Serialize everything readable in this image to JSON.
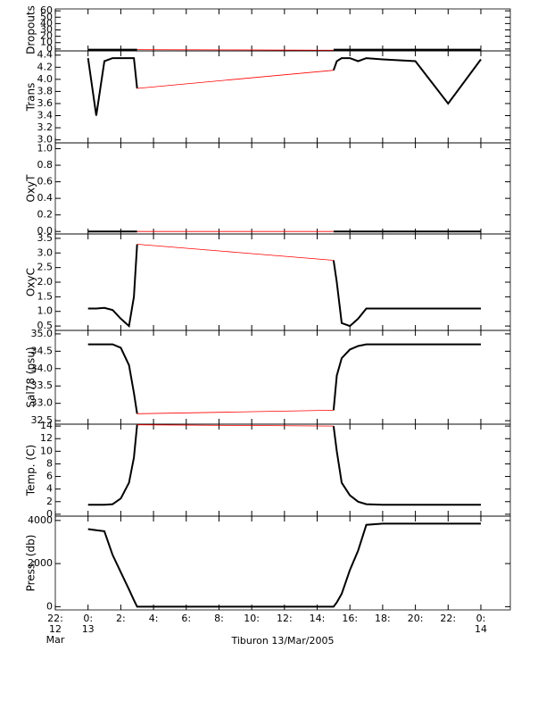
{
  "chart_data": [
    {
      "type": "line",
      "ylabel": "Dropouts",
      "ylim": [
        -3,
        63
      ],
      "yticks": [
        0,
        10,
        20,
        30,
        40,
        50,
        60
      ],
      "x": [
        0,
        0.5,
        1,
        1.5,
        2,
        2.5,
        2.8,
        3,
        9,
        15,
        15.2,
        15.5,
        16,
        16.5,
        17,
        18,
        20,
        22,
        24
      ],
      "series": [
        {
          "color": "#000000",
          "values": [
            -1,
            -1,
            -1,
            -1,
            -1,
            -1,
            -1,
            -1,
            null,
            -1,
            -1,
            -1,
            -1,
            -1,
            -1,
            -1,
            -1,
            -1,
            -1
          ]
        },
        {
          "color": "#ff0000",
          "values": [
            null,
            null,
            null,
            null,
            null,
            null,
            null,
            -1,
            -1.5,
            -2,
            null,
            null,
            null,
            null,
            null,
            null,
            null,
            null,
            null
          ]
        }
      ]
    },
    {
      "type": "line",
      "ylabel": "Trans",
      "ylim": [
        2.95,
        4.47
      ],
      "yticks": [
        {
          "value": 3.0,
          "label": "3.0"
        },
        3.2,
        3.4,
        3.6,
        3.8,
        {
          "value": 4.0,
          "label": "4.0"
        },
        4.2,
        4.4
      ],
      "x": [
        0,
        0.5,
        1,
        1.5,
        2,
        2.5,
        2.8,
        3,
        9,
        15,
        15.2,
        15.5,
        16,
        16.5,
        17,
        18,
        20,
        22,
        24
      ],
      "series": [
        {
          "color": "#000000",
          "values": [
            4.35,
            3.4,
            4.3,
            4.35,
            4.35,
            4.35,
            4.35,
            3.85,
            null,
            4.15,
            4.3,
            4.35,
            4.35,
            4.3,
            4.35,
            4.33,
            4.3,
            3.6,
            4.33
          ]
        },
        {
          "color": "#ff0000",
          "values": [
            null,
            null,
            null,
            null,
            null,
            null,
            null,
            3.85,
            4.0,
            4.15,
            null,
            null,
            null,
            null,
            null,
            null,
            null,
            null,
            null
          ]
        }
      ]
    },
    {
      "type": "line",
      "ylabel": "OxyT",
      "ylim": [
        -0.03,
        1.07
      ],
      "yticks": [
        {
          "value": 0,
          "label": "0.0"
        },
        0.2,
        0.4,
        0.6,
        0.8,
        {
          "value": 1,
          "label": "1.0"
        }
      ],
      "x": [
        0,
        0.5,
        1,
        1.5,
        2,
        2.5,
        2.8,
        3,
        9,
        15,
        15.2,
        15.5,
        16,
        16.5,
        17,
        18,
        20,
        22,
        24
      ],
      "series": [
        {
          "color": "#000000",
          "values": [
            0,
            0,
            0,
            0,
            0,
            0,
            0,
            0,
            null,
            0,
            0,
            0,
            0,
            0,
            0,
            0,
            0,
            0,
            0
          ]
        },
        {
          "color": "#ff0000",
          "values": [
            null,
            null,
            null,
            null,
            null,
            null,
            null,
            0,
            0,
            0,
            null,
            null,
            null,
            null,
            null,
            null,
            null,
            null,
            null
          ]
        }
      ]
    },
    {
      "type": "line",
      "ylabel": "OxyC",
      "ylim": [
        0.35,
        3.65
      ],
      "yticks": [
        0.5,
        {
          "value": 1,
          "label": "1.0"
        },
        1.5,
        {
          "value": 2,
          "label": "2.0"
        },
        2.5,
        {
          "value": 3,
          "label": "3.0"
        },
        3.5
      ],
      "x": [
        0,
        0.5,
        1,
        1.5,
        2,
        2.5,
        2.8,
        3,
        9,
        15,
        15.2,
        15.5,
        16,
        16.5,
        17,
        18,
        20,
        22,
        24
      ],
      "series": [
        {
          "color": "#000000",
          "values": [
            1.1,
            1.1,
            1.12,
            1.05,
            0.75,
            0.5,
            1.5,
            3.3,
            null,
            2.75,
            2.0,
            0.6,
            0.5,
            0.75,
            1.1,
            1.1,
            1.1,
            1.1,
            1.1
          ]
        },
        {
          "color": "#ff0000",
          "values": [
            null,
            null,
            null,
            null,
            null,
            null,
            null,
            3.3,
            3.025,
            2.75,
            null,
            null,
            null,
            null,
            null,
            null,
            null,
            null,
            null
          ]
        }
      ]
    },
    {
      "type": "line",
      "ylabel": "Sal78 (psu)",
      "ylim": [
        32.4,
        35.1
      ],
      "yticks": [
        32.5,
        {
          "value": 33,
          "label": "33.0"
        },
        33.5,
        {
          "value": 34,
          "label": "34.0"
        },
        34.5,
        {
          "value": 35,
          "label": "35.0"
        }
      ],
      "x": [
        0,
        0.5,
        1,
        1.5,
        2,
        2.5,
        2.8,
        3,
        9,
        15,
        15.2,
        15.5,
        16,
        16.5,
        17,
        18,
        20,
        22,
        24
      ],
      "series": [
        {
          "color": "#000000",
          "values": [
            34.7,
            34.7,
            34.7,
            34.7,
            34.6,
            34.1,
            33.3,
            32.7,
            null,
            32.8,
            33.8,
            34.3,
            34.55,
            34.65,
            34.7,
            34.7,
            34.7,
            34.7,
            34.7
          ]
        },
        {
          "color": "#ff0000",
          "values": [
            null,
            null,
            null,
            null,
            null,
            null,
            null,
            32.7,
            32.75,
            32.8,
            null,
            null,
            null,
            null,
            null,
            null,
            null,
            null,
            null
          ]
        }
      ]
    },
    {
      "type": "line",
      "ylabel": "Temp. (C)",
      "ylim": [
        -0.3,
        14.3
      ],
      "yticks": [
        0,
        2,
        4,
        6,
        8,
        10,
        12,
        14
      ],
      "x": [
        0,
        0.5,
        1,
        1.5,
        2,
        2.5,
        2.8,
        3,
        9,
        15,
        15.2,
        15.5,
        16,
        16.5,
        17,
        18,
        20,
        22,
        24
      ],
      "series": [
        {
          "color": "#000000",
          "values": [
            1.5,
            1.5,
            1.5,
            1.6,
            2.5,
            5,
            9,
            14.2,
            null,
            14.0,
            10,
            5,
            3,
            2,
            1.6,
            1.5,
            1.5,
            1.5,
            1.5
          ]
        },
        {
          "color": "#ff0000",
          "values": [
            null,
            null,
            null,
            null,
            null,
            null,
            null,
            14.2,
            14.1,
            14.0,
            null,
            null,
            null,
            null,
            null,
            null,
            null,
            null,
            null
          ]
        }
      ]
    },
    {
      "type": "line",
      "ylabel": "Press. (db)",
      "ylim": [
        -150,
        4200
      ],
      "yticks": [
        0,
        2000,
        4000
      ],
      "x": [
        0,
        0.5,
        1,
        1.5,
        2,
        2.5,
        2.8,
        3,
        9,
        15,
        15.2,
        15.5,
        16,
        16.5,
        17,
        18,
        20,
        22,
        24
      ],
      "series": [
        {
          "color": "#000000",
          "values": [
            3600,
            3550,
            3500,
            2400,
            1600,
            800,
            300,
            0,
            0,
            0,
            200,
            600,
            1700,
            2600,
            3800,
            3850,
            3850,
            3850,
            3850
          ]
        }
      ],
      "xlim": [
        -2,
        25.8
      ],
      "xticks": [
        {
          "value": -2,
          "label": "22:\n12\nMar"
        },
        {
          "value": 0,
          "label": "0:\n13"
        },
        {
          "value": 2,
          "label": "2:"
        },
        {
          "value": 4,
          "label": "4:"
        },
        {
          "value": 6,
          "label": "6:"
        },
        {
          "value": 8,
          "label": "8:"
        },
        {
          "value": 10,
          "label": "10:"
        },
        {
          "value": 12,
          "label": "12:"
        },
        {
          "value": 14,
          "label": "14:"
        },
        {
          "value": 16,
          "label": "16:"
        },
        {
          "value": 18,
          "label": "18:"
        },
        {
          "value": 20,
          "label": "20:"
        },
        {
          "value": 22,
          "label": "22:"
        },
        {
          "value": 24,
          "label": "0:\n14"
        }
      ],
      "xlabel": "Tiburon 13/Mar/2005"
    }
  ]
}
